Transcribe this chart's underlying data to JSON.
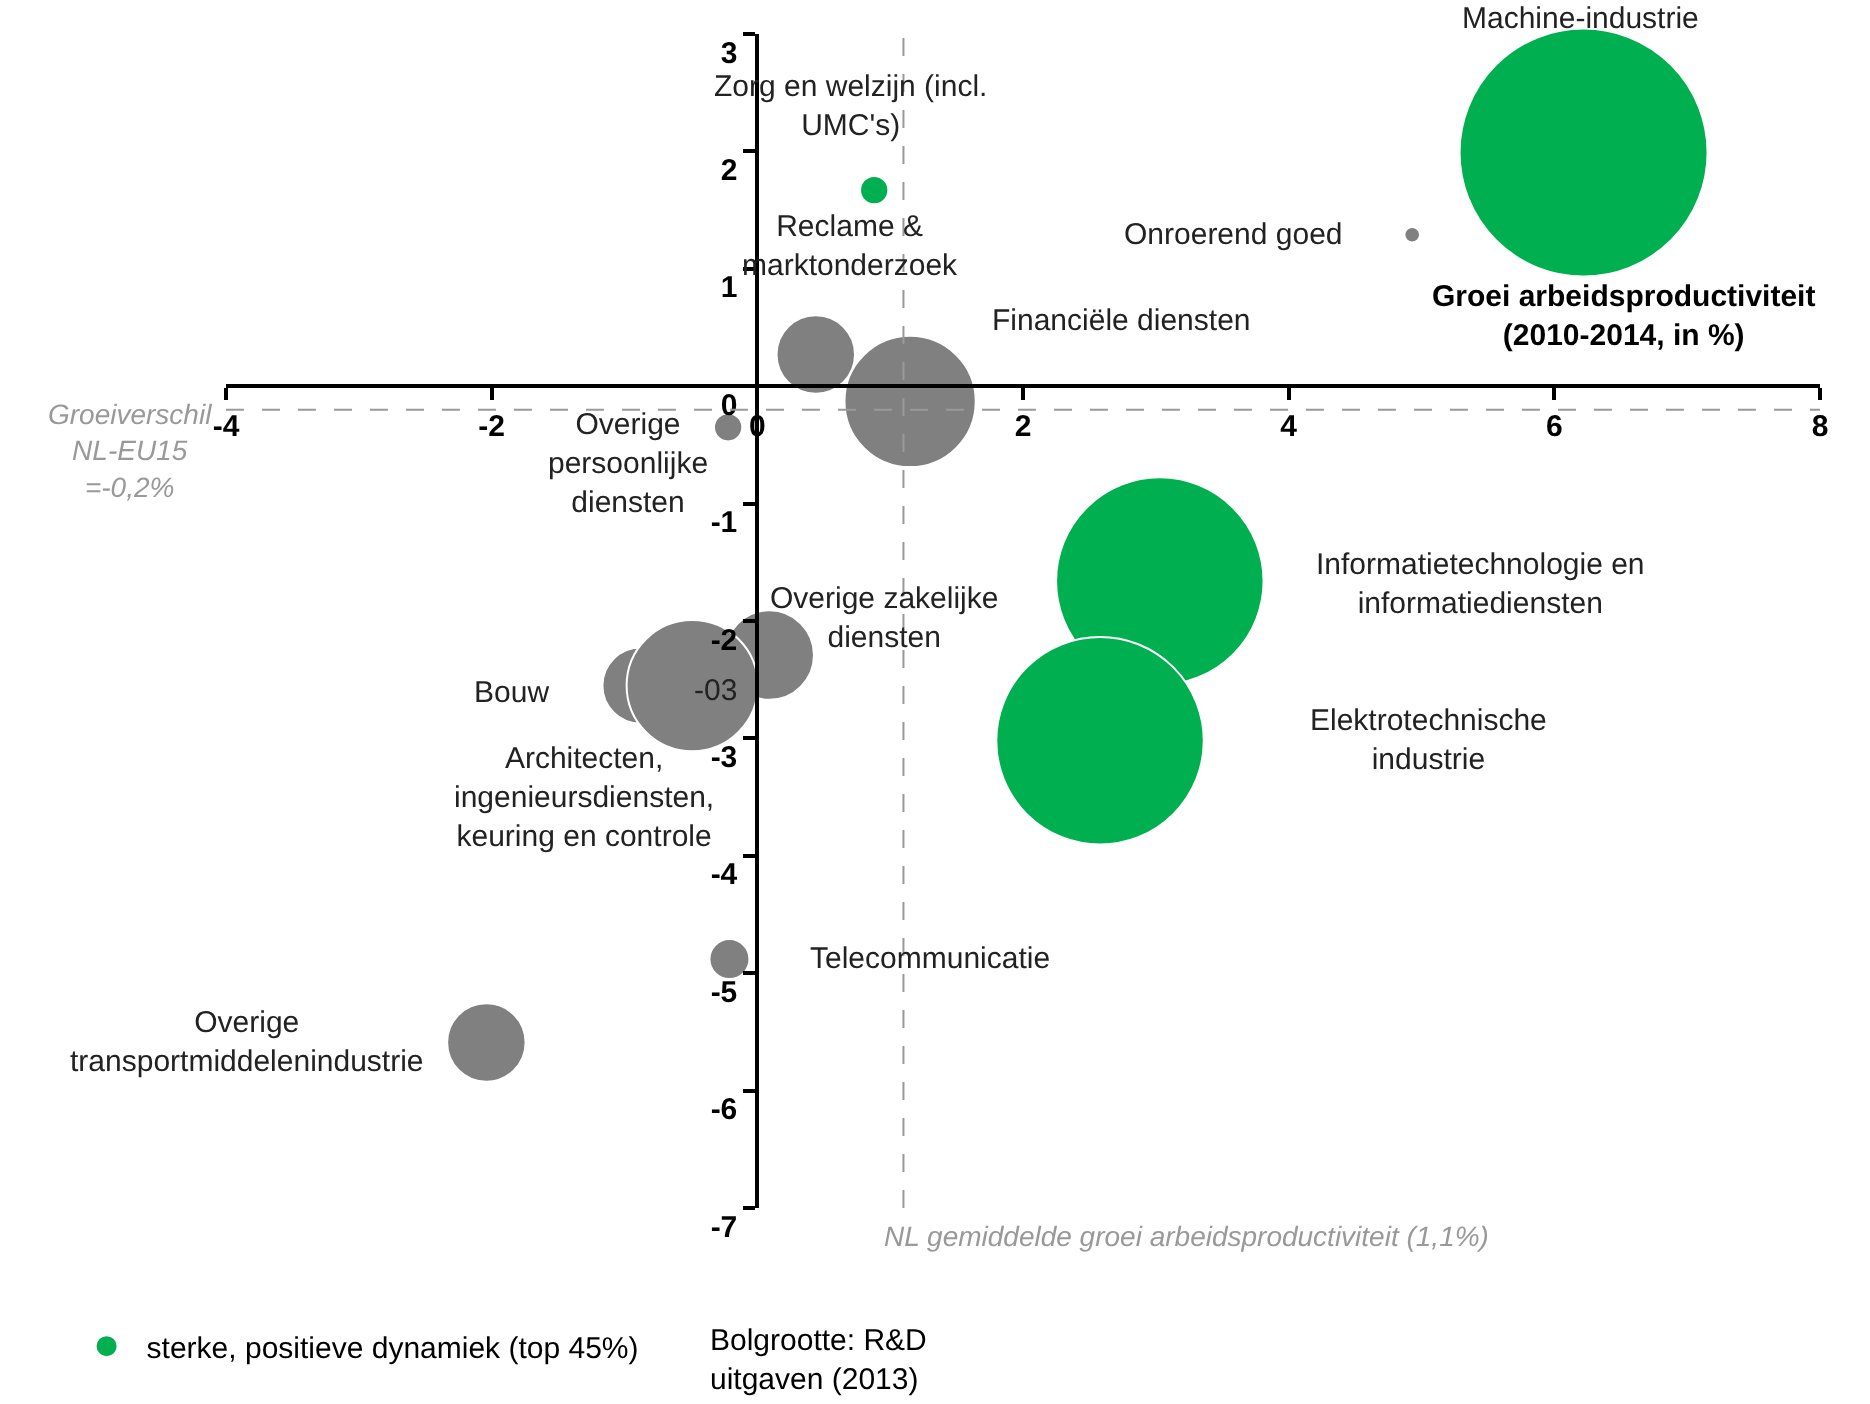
{
  "chart_data": {
    "type": "bubble",
    "xlabel": "Groei arbeidsproductiviteit (2010-2014, in %)",
    "xlim": [
      -4,
      8
    ],
    "xticks": [
      -4,
      -2,
      0,
      2,
      4,
      6,
      8
    ],
    "ylim": [
      -7,
      3
    ],
    "yticks": [
      -7,
      -6,
      -5,
      -4,
      -3,
      -2,
      -1,
      0,
      1,
      2,
      3
    ],
    "legend": "bottom left",
    "series": [
      {
        "name": "sterke, positieve dynamiek (top 45%)",
        "color": "#00b050",
        "x": [
          6.22,
          0.88,
          3.03,
          2.58
        ],
        "values": [
          1.99,
          1.67,
          -1.66,
          -3.02
        ],
        "sizes": [
          1,
          0.013,
          0.7,
          0.7
        ]
      },
      {
        "color": "#808080",
        "x": [
          4.93,
          0.44,
          1.15,
          -0.22,
          0.09,
          -0.88,
          -0.49,
          -0.21,
          -2.04
        ],
        "values": [
          1.29,
          0.27,
          -0.13,
          -0.35,
          -2.29,
          -2.55,
          -2.55,
          -4.88,
          -5.59
        ],
        "sizes": [
          0.004,
          0.1,
          0.28,
          0.013,
          0.13,
          0.094,
          0.28,
          0.026,
          0.1
        ]
      }
    ],
    "ref_lines": [
      {
        "axis": "x",
        "value": 1.1,
        "label": "NL gemiddelde groei arbeidsproductiviteit (1,1%)",
        "color": "#999999",
        "line_style": "dashed"
      },
      {
        "axis": "y",
        "value": -0.2,
        "label": "Groeiverschil NL-EU15 =-0,2%",
        "color": "#999999",
        "line_style": "dashed"
      }
    ],
    "annotations": [
      "Machine-industrie",
      {
        "text": "Zorg en welzijn (incl. UMC's)",
        "x": 0.88,
        "y": 1.67
      },
      "Informatietechnologie en informatiediensten",
      "Elektrotechnische industrie",
      {
        "text": "Onroerend goed",
        "x": 4.93,
        "y": 1.29
      },
      {
        "text": "Reclame & marktonderzoek",
        "x": 0.44,
        "y": 0.27
      },
      "Financiële diensten",
      {
        "text": "Overige persoonlijke diensten",
        "x": -0.22,
        "y": -0.35
      },
      {
        "text": "Overige zakelijke diensten",
        "x": 0.09,
        "y": -2.29
      },
      "Bouw",
      {
        "text": "Architecten, ingenieursdiensten, keuring en controle",
        "x": -0.49,
        "y": -2.55
      },
      {
        "text": "Telecommunicatie",
        "x": -0.21,
        "y": -4.88
      },
      {
        "text": "Overige transportmiddelenindustrie",
        "x": -2.04,
        "y": -5.59
      },
      {
        "text": "-03",
        "x": -0.49,
        "y": -2.55
      },
      "Bolgrootte: R&D uitgaven (2013)"
    ]
  }
}
